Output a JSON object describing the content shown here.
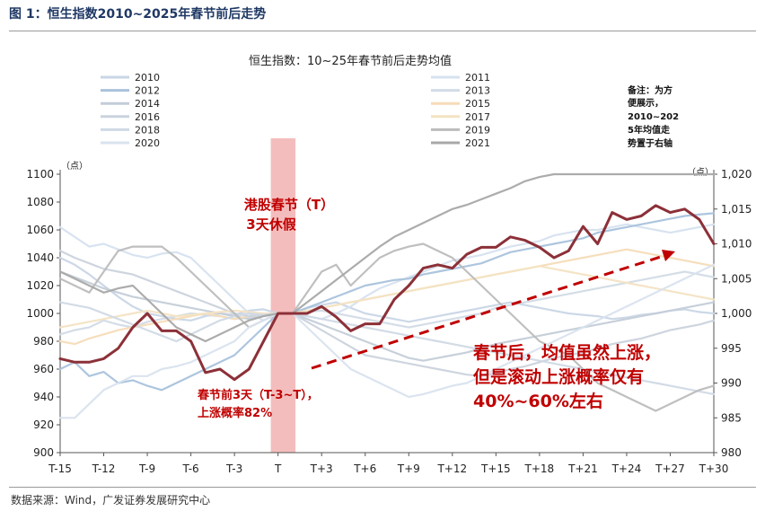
{
  "figure": {
    "title": "图 1：恒生指数2010~2025年春节前后走势",
    "source": "数据来源：Wind，广发证券发展研究中心"
  },
  "chart_data": {
    "type": "line",
    "title": "恒生指数：10~25年春节前后走势均值",
    "left_axis": {
      "unit": "（点）",
      "ylim": [
        900,
        1100
      ],
      "ticks": [
        900,
        920,
        940,
        960,
        980,
        1000,
        1020,
        1040,
        1060,
        1080,
        1100
      ]
    },
    "right_axis": {
      "unit": "（点）",
      "ylim": [
        980,
        1020
      ],
      "ticks": [
        "980",
        "985",
        "990",
        "995",
        "1,000",
        "1,005",
        "1,010",
        "1,015",
        "1,020"
      ]
    },
    "x_ticks": [
      "T-15",
      "T-12",
      "T-9",
      "T-6",
      "T-3",
      "T",
      "T+3",
      "T+6",
      "T+9",
      "T+12",
      "T+15",
      "T+18",
      "T+21",
      "T+24",
      "T+27",
      "T+30"
    ],
    "x_range": [
      -15,
      30
    ],
    "shaded_period": {
      "x_start": -0.5,
      "x_end": 1.2,
      "color": "#f3b6b6"
    },
    "legend": [
      {
        "name": "2010",
        "color": "#c9d6e6"
      },
      {
        "name": "2011",
        "color": "#d6e2ef"
      },
      {
        "name": "2012",
        "color": "#a9c2dc"
      },
      {
        "name": "2013",
        "color": "#d2dbe6"
      },
      {
        "name": "2014",
        "color": "#c4cdd8"
      },
      {
        "name": "2015",
        "color": "#f6dcb8"
      },
      {
        "name": "2016",
        "color": "#cbd3dd"
      },
      {
        "name": "2017",
        "color": "#f3e3c3"
      },
      {
        "name": "2018",
        "color": "#d0d9e5"
      },
      {
        "name": "2019",
        "color": "#bcbcbc"
      },
      {
        "name": "2020",
        "color": "#d9e3ee"
      },
      {
        "name": "2021",
        "color": "#a8a8a8"
      }
    ],
    "series": [
      {
        "name": "2010",
        "values": [
          1040,
          1035,
          1028,
          1020,
          1012,
          1005,
          1000,
          998,
          996,
          995,
          998,
          1000,
          999,
          1002,
          1003,
          1000,
          1000,
          1004,
          1006,
          1008,
          1004,
          1000,
          998,
          996,
          994,
          996,
          998,
          1000,
          1002,
          1004,
          1006,
          1008,
          1006,
          1004,
          1002,
          1000,
          999,
          998,
          996,
          997,
          999,
          1000,
          1002,
          1003,
          1001,
          1000
        ]
      },
      {
        "name": "2011",
        "values": [
          1062,
          1055,
          1048,
          1050,
          1046,
          1042,
          1040,
          1043,
          1044,
          1040,
          1030,
          1020,
          1010,
          1000,
          995,
          1000,
          1000,
          998,
          996,
          1000,
          1005,
          1012,
          1018,
          1022,
          1026,
          1030,
          1034,
          1038,
          1040,
          1042,
          1045,
          1048,
          1050,
          1052,
          1056,
          1058,
          1060,
          1060,
          1062,
          1064,
          1062,
          1060,
          1058,
          1060,
          1062,
          1064
        ]
      },
      {
        "name": "2012",
        "values": [
          960,
          965,
          955,
          958,
          950,
          952,
          948,
          945,
          950,
          955,
          960,
          965,
          970,
          980,
          990,
          1000,
          1000,
          1004,
          1008,
          1012,
          1016,
          1020,
          1022,
          1024,
          1025,
          1028,
          1030,
          1032,
          1034,
          1036,
          1040,
          1044,
          1046,
          1048,
          1050,
          1052,
          1054,
          1058,
          1060,
          1062,
          1064,
          1066,
          1068,
          1070,
          1071,
          1072
        ]
      },
      {
        "name": "2013",
        "values": [
          985,
          988,
          990,
          995,
          992,
          990,
          994,
          996,
          998,
          1000,
          999,
          998,
          996,
          997,
          999,
          1000,
          1000,
          1001,
          1002,
          1000,
          998,
          996,
          994,
          992,
          990,
          992,
          994,
          996,
          998,
          1000,
          1004,
          1006,
          1008,
          1010,
          1012,
          1014,
          1016,
          1018,
          1020,
          1022,
          1024,
          1026,
          1028,
          1030,
          1028,
          1026
        ]
      },
      {
        "name": "2014",
        "values": [
          1030,
          1026,
          1022,
          1018,
          1015,
          1012,
          1010,
          1008,
          1006,
          1004,
          1002,
          1000,
          998,
          996,
          998,
          1000,
          1000,
          996,
          992,
          988,
          984,
          980,
          976,
          972,
          968,
          966,
          968,
          970,
          972,
          975,
          978,
          980,
          982,
          984,
          986,
          988,
          990,
          992,
          994,
          996,
          998,
          1000,
          1002,
          1004,
          1006,
          1008
        ]
      },
      {
        "name": "2015",
        "values": [
          980,
          978,
          982,
          985,
          988,
          990,
          992,
          994,
          996,
          998,
          1000,
          998,
          996,
          998,
          999,
          1000,
          1000,
          1002,
          1004,
          1006,
          1008,
          1010,
          1012,
          1014,
          1016,
          1018,
          1020,
          1022,
          1024,
          1026,
          1028,
          1030,
          1032,
          1034,
          1036,
          1038,
          1040,
          1042,
          1044,
          1046,
          1044,
          1042,
          1040,
          1038,
          1036,
          1034
        ]
      },
      {
        "name": "2016",
        "values": [
          1045,
          1040,
          1036,
          1032,
          1030,
          1028,
          1024,
          1020,
          1016,
          1012,
          1008,
          1004,
          1000,
          998,
          999,
          1000,
          1000,
          994,
          988,
          982,
          976,
          970,
          968,
          966,
          964,
          962,
          960,
          958,
          956,
          955,
          957,
          960,
          962,
          965,
          968,
          970,
          972,
          975,
          978,
          980,
          982,
          985,
          988,
          990,
          992,
          995
        ]
      },
      {
        "name": "2017",
        "values": [
          990,
          992,
          994,
          996,
          998,
          1000,
          1002,
          1000,
          998,
          999,
          1000,
          1001,
          1002,
          1001,
          1000,
          1000,
          1000,
          1002,
          1004,
          1006,
          1008,
          1010,
          1012,
          1014,
          1016,
          1018,
          1020,
          1022,
          1024,
          1026,
          1028,
          1030,
          1032,
          1034,
          1032,
          1030,
          1028,
          1026,
          1024,
          1022,
          1020,
          1018,
          1016,
          1014,
          1012,
          1010
        ]
      },
      {
        "name": "2018",
        "values": [
          1008,
          1006,
          1004,
          1000,
          996,
          992,
          988,
          984,
          980,
          985,
          990,
          995,
          998,
          1000,
          999,
          1000,
          1000,
          998,
          996,
          994,
          992,
          990,
          988,
          986,
          984,
          982,
          980,
          978,
          976,
          974,
          972,
          970,
          968,
          966,
          964,
          962,
          960,
          958,
          956,
          954,
          952,
          950,
          948,
          946,
          944,
          942
        ]
      },
      {
        "name": "2019",
        "values": [
          1025,
          1020,
          1015,
          1030,
          1045,
          1048,
          1048,
          1048,
          1040,
          1030,
          1020,
          1010,
          1000,
          990,
          995,
          1000,
          1000,
          1015,
          1030,
          1035,
          1020,
          1030,
          1040,
          1045,
          1048,
          1050,
          1045,
          1040,
          1030,
          1020,
          1010,
          1000,
          990,
          980,
          975,
          970,
          960,
          950,
          945,
          940,
          935,
          930,
          935,
          940,
          945,
          948
        ]
      },
      {
        "name": "2020",
        "values": [
          925,
          925,
          935,
          945,
          950,
          955,
          955,
          960,
          962,
          965,
          970,
          975,
          980,
          990,
          995,
          1000,
          1000,
          990,
          980,
          970,
          960,
          955,
          950,
          945,
          940,
          942,
          945,
          948,
          950,
          955,
          960,
          965,
          970,
          975,
          980,
          985,
          990,
          995,
          1000,
          1005,
          1010,
          1015,
          1020,
          1025,
          1030,
          1035
        ]
      },
      {
        "name": "2021",
        "values": [
          1030,
          1025,
          1020,
          1015,
          1018,
          1020,
          1010,
          1000,
          990,
          985,
          980,
          985,
          990,
          995,
          998,
          1000,
          1000,
          1008,
          1016,
          1024,
          1032,
          1040,
          1048,
          1055,
          1060,
          1065,
          1070,
          1075,
          1078,
          1082,
          1086,
          1090,
          1095,
          1098,
          1100,
          1100,
          1100,
          1100,
          1100,
          1100,
          1100,
          1100,
          1100,
          1100,
          1100,
          1100
        ]
      },
      {
        "name": "average",
        "axis": "right",
        "color": "#8c3038",
        "values": [
          993.5,
          993.0,
          993.0,
          993.5,
          995.0,
          998.0,
          1000.0,
          997.5,
          997.5,
          996.0,
          991.5,
          992.0,
          990.5,
          992.0,
          996.0,
          1000.0,
          1000.0,
          1000.0,
          1001.0,
          999.5,
          997.5,
          998.5,
          998.5,
          1002.0,
          1004.0,
          1006.5,
          1007.0,
          1006.5,
          1008.5,
          1009.5,
          1009.5,
          1011.0,
          1010.5,
          1009.5,
          1008.0,
          1009.0,
          1012.5,
          1010.0,
          1014.5,
          1013.5,
          1014.0,
          1015.5,
          1014.5,
          1015.0,
          1013.5,
          1010.0
        ]
      }
    ],
    "annotations": {
      "holiday_line1": "港股春节（T）",
      "holiday_line2": "3天休假",
      "pre_line1": "春节前3天（T-3~T），",
      "pre_line2": "上涨概率82%",
      "post_line1": "春节后，均值虽然上涨，",
      "post_line2": "但是滚动上涨概率仅有",
      "post_line3": "40%~60%左右",
      "note_line1": "备注：为方",
      "note_line2": "便展示，",
      "note_line3": "2010~202",
      "note_line4": "5年均值走",
      "note_line5": "势置于右轴"
    },
    "colors": {
      "accent": "#c00000",
      "average": "#8c3038",
      "trend": "#c00000"
    }
  }
}
